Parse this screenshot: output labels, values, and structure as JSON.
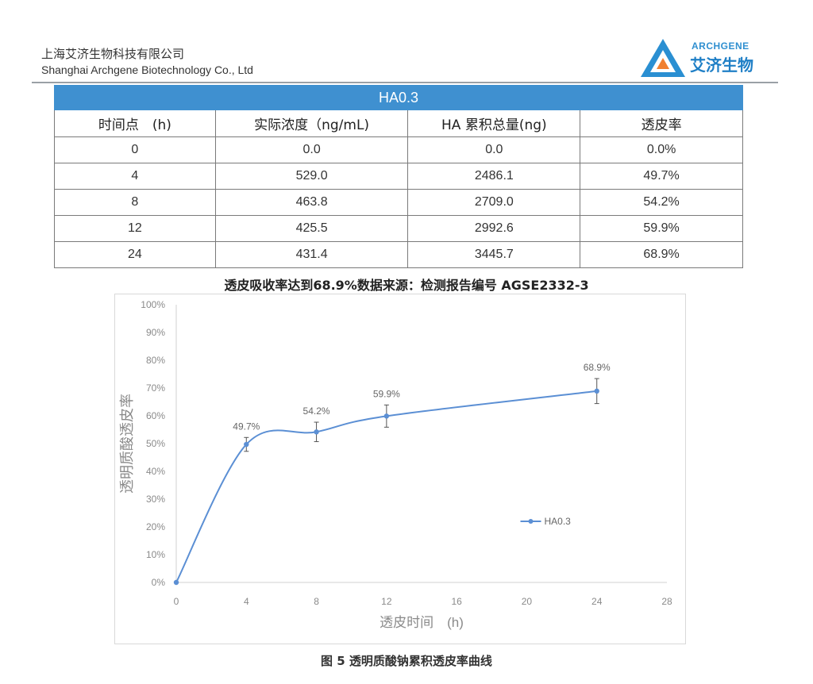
{
  "header": {
    "company_cn": "上海艾济生物科技有限公司",
    "company_en": "Shanghai Archgene Biotechnology Co., Ltd",
    "logo_en": "ARCHGENE",
    "logo_cn": "艾济生物"
  },
  "table": {
    "title": "HA0.3",
    "columns": [
      "时间点　(h)",
      "实际浓度（ng/mL)",
      "HA 累积总量(ng)",
      "透皮率"
    ],
    "rows": [
      [
        "0",
        "0.0",
        "0.0",
        "0.0%"
      ],
      [
        "4",
        "529.0",
        "2486.1",
        "49.7%"
      ],
      [
        "8",
        "463.8",
        "2709.0",
        "54.2%"
      ],
      [
        "12",
        "425.5",
        "2992.6",
        "59.9%"
      ],
      [
        "24",
        "431.4",
        "3445.7",
        "68.9%"
      ]
    ]
  },
  "caption_top": "透皮吸收率达到68.9%数据来源：检测报告编号 AGSE2332-3",
  "chart_data": {
    "type": "line",
    "title": "",
    "xlabel": "透皮时间　(h)",
    "ylabel": "透明质酸透皮率",
    "x": [
      0,
      4,
      8,
      12,
      24
    ],
    "series": [
      {
        "name": "HA0.3",
        "values": [
          0.0,
          49.7,
          54.2,
          59.9,
          68.9
        ],
        "error": [
          0,
          2.5,
          3.5,
          4.0,
          4.5
        ]
      }
    ],
    "data_labels": [
      "",
      "49.7%",
      "54.2%",
      "59.9%",
      "68.9%"
    ],
    "xlim": [
      0,
      28
    ],
    "xticks": [
      0,
      4,
      8,
      12,
      16,
      20,
      24,
      28
    ],
    "ylim": [
      0,
      100
    ],
    "yticks": [
      0,
      10,
      20,
      30,
      40,
      50,
      60,
      70,
      80,
      90,
      100
    ],
    "ytick_suffix": "%",
    "grid": false,
    "legend": "right-inside",
    "color": "#5b8fd4"
  },
  "caption_bottom": "图 5  透明质酸钠累积透皮率曲线"
}
